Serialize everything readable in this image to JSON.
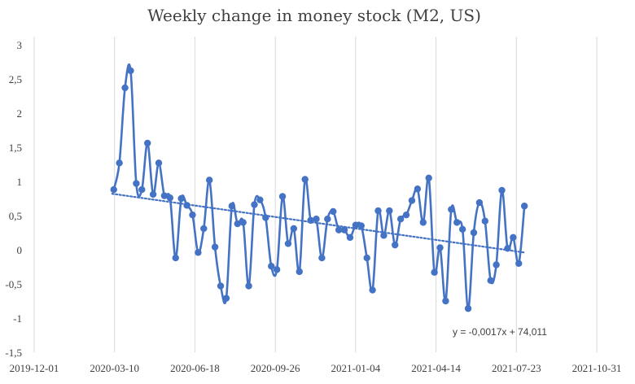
{
  "chart_data": {
    "type": "line",
    "title": "Weekly change in money stock (M2, US)",
    "xlabel": "",
    "ylabel": "",
    "x_axis": {
      "min": "2019-12-01",
      "max": "2021-10-31",
      "tick_labels": [
        "2019-12-01",
        "2020-03-10",
        "2020-06-18",
        "2020-09-26",
        "2021-01-04",
        "2021-04-14",
        "2021-07-23",
        "2021-10-31"
      ]
    },
    "y_axis": {
      "min": -1.5,
      "max": 3,
      "step": 0.5,
      "tick_labels": [
        "-1,5",
        "-1",
        "-0,5",
        "0",
        "0,5",
        "1",
        "1,5",
        "2",
        "2,5",
        "3"
      ]
    },
    "grid": "vertical",
    "series": [
      {
        "color": "#4472C4",
        "marker": "circle",
        "points": [
          {
            "x": "2020-03-09",
            "y": 0.88
          },
          {
            "x": "2020-03-16",
            "y": 1.27
          },
          {
            "x": "2020-03-23",
            "y": 2.37
          },
          {
            "x": "2020-03-30",
            "y": 2.62
          },
          {
            "x": "2020-04-06",
            "y": 0.97
          },
          {
            "x": "2020-04-13",
            "y": 0.88
          },
          {
            "x": "2020-04-20",
            "y": 1.56
          },
          {
            "x": "2020-04-27",
            "y": 0.81
          },
          {
            "x": "2020-05-04",
            "y": 1.27
          },
          {
            "x": "2020-05-11",
            "y": 0.79
          },
          {
            "x": "2020-05-18",
            "y": 0.76
          },
          {
            "x": "2020-05-25",
            "y": -0.12
          },
          {
            "x": "2020-06-01",
            "y": 0.75
          },
          {
            "x": "2020-06-08",
            "y": 0.65
          },
          {
            "x": "2020-06-15",
            "y": 0.51
          },
          {
            "x": "2020-06-22",
            "y": -0.04
          },
          {
            "x": "2020-06-29",
            "y": 0.31
          },
          {
            "x": "2020-07-06",
            "y": 1.02
          },
          {
            "x": "2020-07-13",
            "y": 0.04
          },
          {
            "x": "2020-07-20",
            "y": -0.53
          },
          {
            "x": "2020-07-27",
            "y": -0.71
          },
          {
            "x": "2020-08-03",
            "y": 0.64
          },
          {
            "x": "2020-08-10",
            "y": 0.38
          },
          {
            "x": "2020-08-17",
            "y": 0.4
          },
          {
            "x": "2020-08-24",
            "y": -0.53
          },
          {
            "x": "2020-08-31",
            "y": 0.66
          },
          {
            "x": "2020-09-07",
            "y": 0.73
          },
          {
            "x": "2020-09-14",
            "y": 0.47
          },
          {
            "x": "2020-09-21",
            "y": -0.24
          },
          {
            "x": "2020-09-28",
            "y": -0.29
          },
          {
            "x": "2020-10-05",
            "y": 0.78
          },
          {
            "x": "2020-10-12",
            "y": 0.09
          },
          {
            "x": "2020-10-19",
            "y": 0.31
          },
          {
            "x": "2020-10-26",
            "y": -0.32
          },
          {
            "x": "2020-11-02",
            "y": 1.03
          },
          {
            "x": "2020-11-09",
            "y": 0.43
          },
          {
            "x": "2020-11-16",
            "y": 0.45
          },
          {
            "x": "2020-11-23",
            "y": -0.12
          },
          {
            "x": "2020-11-30",
            "y": 0.45
          },
          {
            "x": "2020-12-07",
            "y": 0.56
          },
          {
            "x": "2020-12-14",
            "y": 0.29
          },
          {
            "x": "2020-12-21",
            "y": 0.29
          },
          {
            "x": "2020-12-28",
            "y": 0.18
          },
          {
            "x": "2021-01-04",
            "y": 0.36
          },
          {
            "x": "2021-01-11",
            "y": 0.35
          },
          {
            "x": "2021-01-18",
            "y": -0.12
          },
          {
            "x": "2021-01-25",
            "y": -0.59
          },
          {
            "x": "2021-02-01",
            "y": 0.57
          },
          {
            "x": "2021-02-08",
            "y": 0.21
          },
          {
            "x": "2021-02-15",
            "y": 0.57
          },
          {
            "x": "2021-02-22",
            "y": 0.07
          },
          {
            "x": "2021-03-01",
            "y": 0.45
          },
          {
            "x": "2021-03-08",
            "y": 0.51
          },
          {
            "x": "2021-03-15",
            "y": 0.72
          },
          {
            "x": "2021-03-22",
            "y": 0.89
          },
          {
            "x": "2021-03-29",
            "y": 0.4
          },
          {
            "x": "2021-04-05",
            "y": 1.05
          },
          {
            "x": "2021-04-12",
            "y": -0.33
          },
          {
            "x": "2021-04-19",
            "y": 0.03
          },
          {
            "x": "2021-04-26",
            "y": -0.75
          },
          {
            "x": "2021-05-03",
            "y": 0.59
          },
          {
            "x": "2021-05-10",
            "y": 0.4
          },
          {
            "x": "2021-05-17",
            "y": 0.3
          },
          {
            "x": "2021-05-24",
            "y": -0.86
          },
          {
            "x": "2021-05-31",
            "y": 0.25
          },
          {
            "x": "2021-06-07",
            "y": 0.69
          },
          {
            "x": "2021-06-14",
            "y": 0.42
          },
          {
            "x": "2021-06-21",
            "y": -0.45
          },
          {
            "x": "2021-06-28",
            "y": -0.22
          },
          {
            "x": "2021-07-05",
            "y": 0.87
          },
          {
            "x": "2021-07-12",
            "y": 0.02
          },
          {
            "x": "2021-07-19",
            "y": 0.18
          },
          {
            "x": "2021-07-26",
            "y": -0.2
          },
          {
            "x": "2021-08-02",
            "y": 0.64
          }
        ]
      }
    ],
    "trendline": {
      "type": "linear",
      "style": "dotted",
      "color": "#4472C4",
      "start": {
        "x": "2020-03-07",
        "y": 0.82
      },
      "end": {
        "x": "2021-08-02",
        "y": -0.04
      },
      "equation": "y = -0,0017x + 74,011"
    }
  }
}
